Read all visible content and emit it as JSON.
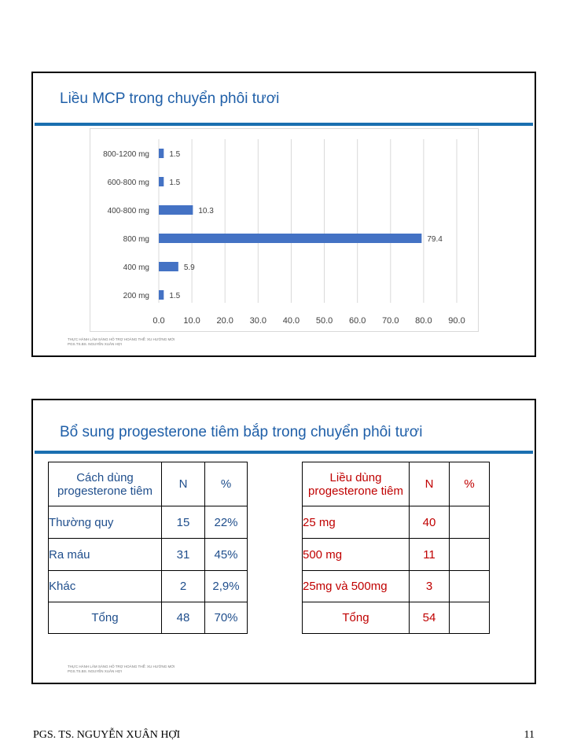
{
  "slide1": {
    "title": "Liều MCP trong chuyển phôi tươi",
    "note_line1": "THỰC HÀNH LÂM SÀNG HỖ TRỢ HOÀNG THỂ: XU HƯỚNG MỚI",
    "note_line2": "PGS.TS.BS. NGUYỄN XUÂN HỢI"
  },
  "chart_data": {
    "type": "bar",
    "orientation": "horizontal",
    "categories": [
      "800-1200 mg",
      "600-800 mg",
      "400-800 mg",
      "800 mg",
      "400 mg",
      "200 mg"
    ],
    "values": [
      1.5,
      1.5,
      10.3,
      79.4,
      5.9,
      1.5
    ],
    "value_labels": [
      "1.5",
      "1.5",
      "10.3",
      "79.4",
      "5.9",
      "1.5"
    ],
    "xlim": [
      0,
      90
    ],
    "xticks": [
      "0.0",
      "10.0",
      "20.0",
      "30.0",
      "40.0",
      "50.0",
      "60.0",
      "70.0",
      "80.0",
      "90.0"
    ],
    "grid": true,
    "bar_color": "#4472c4"
  },
  "slide2": {
    "title": "Bổ sung progesterone tiêm bắp trong chuyển phôi tươi",
    "note_line1": "THỰC HÀNH LÂM SÀNG HỖ TRỢ HOÀNG THỂ: XU HƯỚNG MỚI",
    "note_line2": "PGS.TS.BS. NGUYỄN XUÂN HỢI",
    "table1": {
      "headers": [
        "Cách dùng progesterone tiêm",
        "N",
        "%"
      ],
      "rows": [
        [
          "Thường quy",
          "15",
          "22%"
        ],
        [
          "Ra máu",
          "31",
          "45%"
        ],
        [
          "Khác",
          "2",
          "2,9%"
        ],
        [
          "Tổng",
          "48",
          "70%"
        ]
      ]
    },
    "table2": {
      "headers": [
        "Liều dùng progesterone tiêm",
        "N",
        "%"
      ],
      "rows": [
        [
          "25 mg",
          "40",
          ""
        ],
        [
          "500 mg",
          "11",
          ""
        ],
        [
          "25mg và 500mg",
          "3",
          ""
        ],
        [
          "Tổng",
          "54",
          ""
        ]
      ]
    }
  },
  "footer": {
    "author": "PGS. TS. NGUYỄN XUÂN HỢI",
    "page": "11"
  }
}
